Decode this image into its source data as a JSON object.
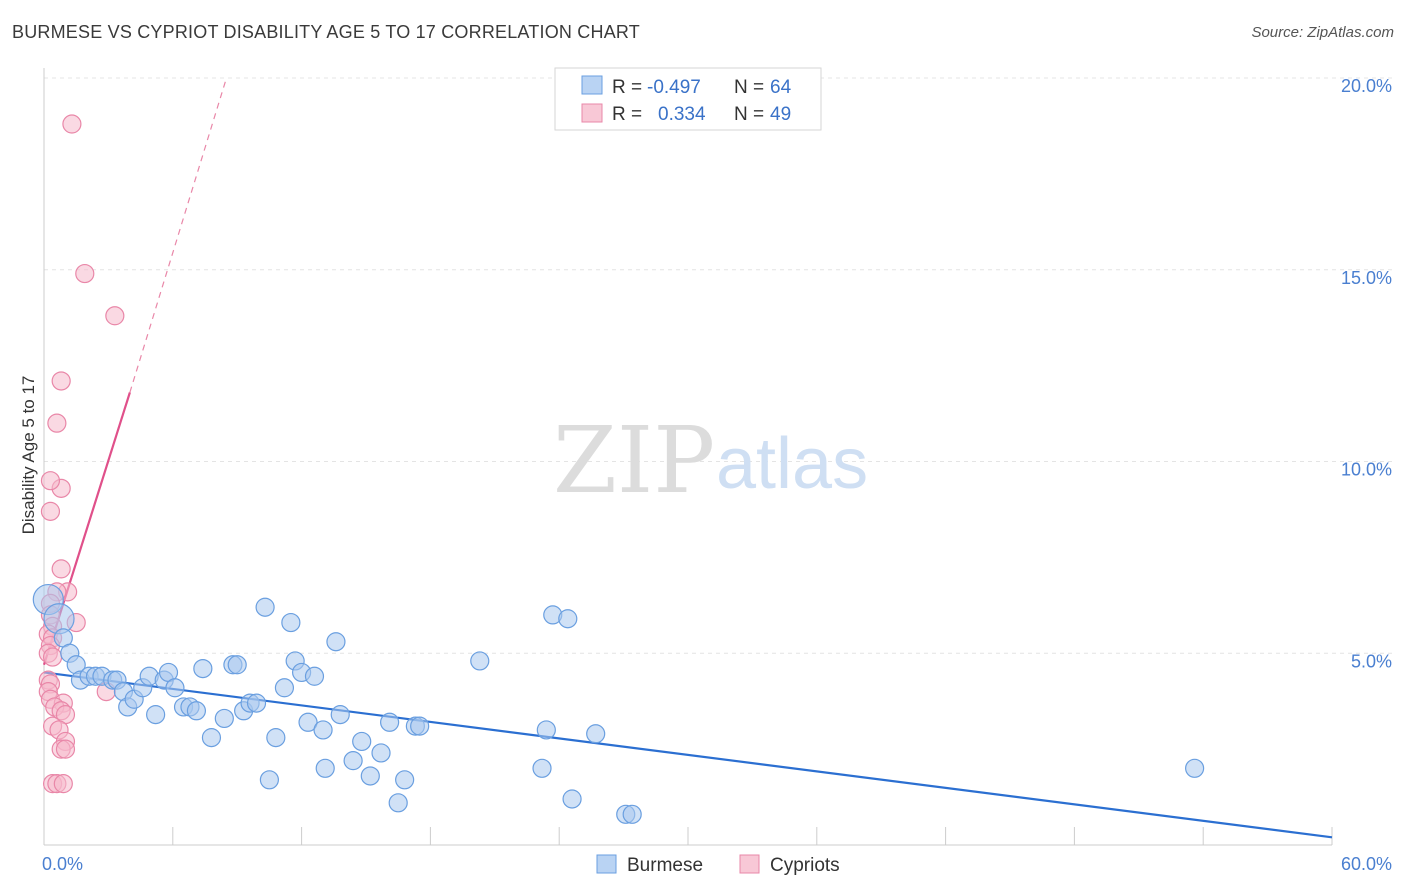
{
  "title": "BURMESE VS CYPRIOT DISABILITY AGE 5 TO 17 CORRELATION CHART",
  "source": "Source: ZipAtlas.com",
  "watermark": {
    "zip": "ZIP",
    "atlas": "atlas"
  },
  "colors": {
    "burmese_fill": "#a9c8ef",
    "burmese_stroke": "#6a9fe0",
    "burmese_line": "#2b6fd1",
    "cypriot_fill": "#f6b9cc",
    "cypriot_stroke": "#e987a8",
    "cypriot_line": "#e0508a",
    "grid": "#e4e4e4",
    "tick_text": "#4a7fd0"
  },
  "legend": {
    "rows": [
      {
        "series": "burmese",
        "r_label": "R =",
        "r_value": "-0.497",
        "n_label": "N =",
        "n_value": "64"
      },
      {
        "series": "cypriot",
        "r_label": "R =",
        "r_value": "0.334",
        "n_label": "N =",
        "n_value": "49"
      }
    ]
  },
  "chart_data": {
    "type": "scatter",
    "title": "BURMESE VS CYPRIOT DISABILITY AGE 5 TO 17 CORRELATION CHART",
    "xlabel": "",
    "ylabel": "Disability Age 5 to 17",
    "xlim": [
      0,
      60
    ],
    "ylim": [
      0,
      20
    ],
    "x_tick_labels": [
      {
        "value": 0,
        "label": "0.0%"
      },
      {
        "value": 60,
        "label": "60.0%"
      }
    ],
    "y_tick_labels": [
      {
        "value": 5,
        "label": "5.0%"
      },
      {
        "value": 10,
        "label": "10.0%"
      },
      {
        "value": 15,
        "label": "15.0%"
      },
      {
        "value": 20,
        "label": "20.0%"
      }
    ],
    "x_minor_ticks": [
      6,
      12,
      18,
      24,
      30,
      36,
      42,
      48,
      54,
      60
    ],
    "grid": true,
    "legend_position": "top-center",
    "series": [
      {
        "name": "Burmese",
        "key": "burmese",
        "r": -0.497,
        "n": 64,
        "trend": {
          "x": [
            0,
            60
          ],
          "y": [
            4.5,
            0.2
          ],
          "dashed_extension": false
        },
        "points": [
          {
            "x": 0.2,
            "y": 6.4,
            "big": true
          },
          {
            "x": 0.7,
            "y": 5.9,
            "big": true
          },
          {
            "x": 0.9,
            "y": 5.4
          },
          {
            "x": 1.2,
            "y": 5.0
          },
          {
            "x": 1.5,
            "y": 4.7
          },
          {
            "x": 1.7,
            "y": 4.3
          },
          {
            "x": 2.1,
            "y": 4.4
          },
          {
            "x": 2.4,
            "y": 4.4
          },
          {
            "x": 2.7,
            "y": 4.4
          },
          {
            "x": 3.2,
            "y": 4.3
          },
          {
            "x": 3.4,
            "y": 4.3
          },
          {
            "x": 3.7,
            "y": 4.0
          },
          {
            "x": 3.9,
            "y": 3.6
          },
          {
            "x": 4.2,
            "y": 3.8
          },
          {
            "x": 4.6,
            "y": 4.1
          },
          {
            "x": 4.9,
            "y": 4.4
          },
          {
            "x": 5.2,
            "y": 3.4
          },
          {
            "x": 5.6,
            "y": 4.3
          },
          {
            "x": 5.8,
            "y": 4.5
          },
          {
            "x": 6.1,
            "y": 4.1
          },
          {
            "x": 6.5,
            "y": 3.6
          },
          {
            "x": 6.8,
            "y": 3.6
          },
          {
            "x": 7.1,
            "y": 3.5
          },
          {
            "x": 7.4,
            "y": 4.6
          },
          {
            "x": 7.8,
            "y": 2.8
          },
          {
            "x": 8.4,
            "y": 3.3
          },
          {
            "x": 8.8,
            "y": 4.7
          },
          {
            "x": 9.0,
            "y": 4.7
          },
          {
            "x": 9.3,
            "y": 3.5
          },
          {
            "x": 9.6,
            "y": 3.7
          },
          {
            "x": 9.9,
            "y": 3.7
          },
          {
            "x": 10.3,
            "y": 6.2
          },
          {
            "x": 10.5,
            "y": 1.7
          },
          {
            "x": 10.8,
            "y": 2.8
          },
          {
            "x": 11.2,
            "y": 4.1
          },
          {
            "x": 11.5,
            "y": 5.8
          },
          {
            "x": 11.7,
            "y": 4.8
          },
          {
            "x": 12.0,
            "y": 4.5
          },
          {
            "x": 12.3,
            "y": 3.2
          },
          {
            "x": 12.6,
            "y": 4.4
          },
          {
            "x": 13.0,
            "y": 3.0
          },
          {
            "x": 13.1,
            "y": 2.0
          },
          {
            "x": 13.6,
            "y": 5.3
          },
          {
            "x": 13.8,
            "y": 3.4
          },
          {
            "x": 14.4,
            "y": 2.2
          },
          {
            "x": 14.8,
            "y": 2.7
          },
          {
            "x": 15.2,
            "y": 1.8
          },
          {
            "x": 15.7,
            "y": 2.4
          },
          {
            "x": 16.1,
            "y": 3.2
          },
          {
            "x": 16.5,
            "y": 1.1
          },
          {
            "x": 16.8,
            "y": 1.7
          },
          {
            "x": 17.3,
            "y": 3.1
          },
          {
            "x": 17.5,
            "y": 3.1
          },
          {
            "x": 20.3,
            "y": 4.8
          },
          {
            "x": 23.2,
            "y": 2.0
          },
          {
            "x": 23.4,
            "y": 3.0
          },
          {
            "x": 23.7,
            "y": 6.0
          },
          {
            "x": 24.4,
            "y": 5.9
          },
          {
            "x": 24.6,
            "y": 1.2
          },
          {
            "x": 25.7,
            "y": 2.9
          },
          {
            "x": 27.1,
            "y": 0.8
          },
          {
            "x": 27.4,
            "y": 0.8
          },
          {
            "x": 53.6,
            "y": 2.0
          }
        ]
      },
      {
        "name": "Cypriots",
        "key": "cypriot",
        "r": 0.334,
        "n": 49,
        "trend": {
          "x": [
            0,
            4.0
          ],
          "y": [
            4.7,
            11.8
          ],
          "dashed_extension": {
            "x": [
              4.0,
              8.5
            ],
            "y": [
              11.8,
              20.0
            ]
          }
        },
        "points": [
          {
            "x": 1.3,
            "y": 18.8
          },
          {
            "x": 1.9,
            "y": 14.9
          },
          {
            "x": 3.3,
            "y": 13.8
          },
          {
            "x": 0.8,
            "y": 12.1
          },
          {
            "x": 0.6,
            "y": 11.0
          },
          {
            "x": 0.8,
            "y": 9.3
          },
          {
            "x": 0.3,
            "y": 9.5
          },
          {
            "x": 0.3,
            "y": 8.7
          },
          {
            "x": 0.8,
            "y": 7.2
          },
          {
            "x": 1.1,
            "y": 6.6
          },
          {
            "x": 0.6,
            "y": 6.6
          },
          {
            "x": 0.3,
            "y": 6.3
          },
          {
            "x": 0.3,
            "y": 6.0
          },
          {
            "x": 0.4,
            "y": 5.7
          },
          {
            "x": 1.5,
            "y": 5.8
          },
          {
            "x": 0.2,
            "y": 5.5
          },
          {
            "x": 0.4,
            "y": 5.4
          },
          {
            "x": 0.3,
            "y": 5.2
          },
          {
            "x": 0.2,
            "y": 5.0
          },
          {
            "x": 0.4,
            "y": 4.9
          },
          {
            "x": 0.2,
            "y": 4.3
          },
          {
            "x": 0.3,
            "y": 4.2
          },
          {
            "x": 0.2,
            "y": 4.0
          },
          {
            "x": 0.3,
            "y": 3.8
          },
          {
            "x": 0.9,
            "y": 3.7
          },
          {
            "x": 0.5,
            "y": 3.6
          },
          {
            "x": 0.8,
            "y": 3.5
          },
          {
            "x": 1.0,
            "y": 3.4
          },
          {
            "x": 0.4,
            "y": 3.1
          },
          {
            "x": 0.7,
            "y": 3.0
          },
          {
            "x": 1.0,
            "y": 2.7
          },
          {
            "x": 0.8,
            "y": 2.5
          },
          {
            "x": 1.0,
            "y": 2.5
          },
          {
            "x": 0.4,
            "y": 1.6
          },
          {
            "x": 0.6,
            "y": 1.6
          },
          {
            "x": 0.9,
            "y": 1.6
          },
          {
            "x": 2.9,
            "y": 4.0
          }
        ]
      }
    ]
  }
}
